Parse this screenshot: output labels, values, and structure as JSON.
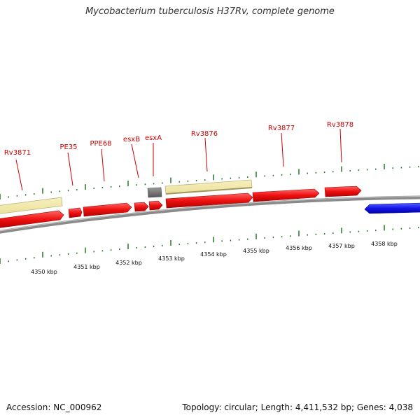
{
  "title": "Mycobacterium tuberculosis H37Rv, complete genome",
  "footer": {
    "accession": "Accession: NC_000962",
    "summary": "Topology: circular; Length: 4,411,532 bp; Genes: 4,038"
  },
  "colors": {
    "gene": "#ee1111",
    "gene_dark": "#bb0000",
    "reverse_gene": "#1515e6",
    "region_fill": "#f0e8a8",
    "region_border": "#bdb27a",
    "unknown_feature": "#6a6a6a",
    "tick": "#227722",
    "label": "#cc0000",
    "backbone": "#8a8a8a"
  },
  "gene_labels": [
    "Rv3871",
    "PE35",
    "PPE68",
    "esxB",
    "esxA",
    "Rv3876",
    "Rv3877",
    "Rv3878"
  ],
  "scale": {
    "unit": "kbp",
    "labels": [
      "4350 kbp",
      "4351 kbp",
      "4352 kbp",
      "4353 kbp",
      "4354 kbp",
      "4355 kbp",
      "4356 kbp",
      "4357 kbp",
      "4358 kbp"
    ]
  }
}
